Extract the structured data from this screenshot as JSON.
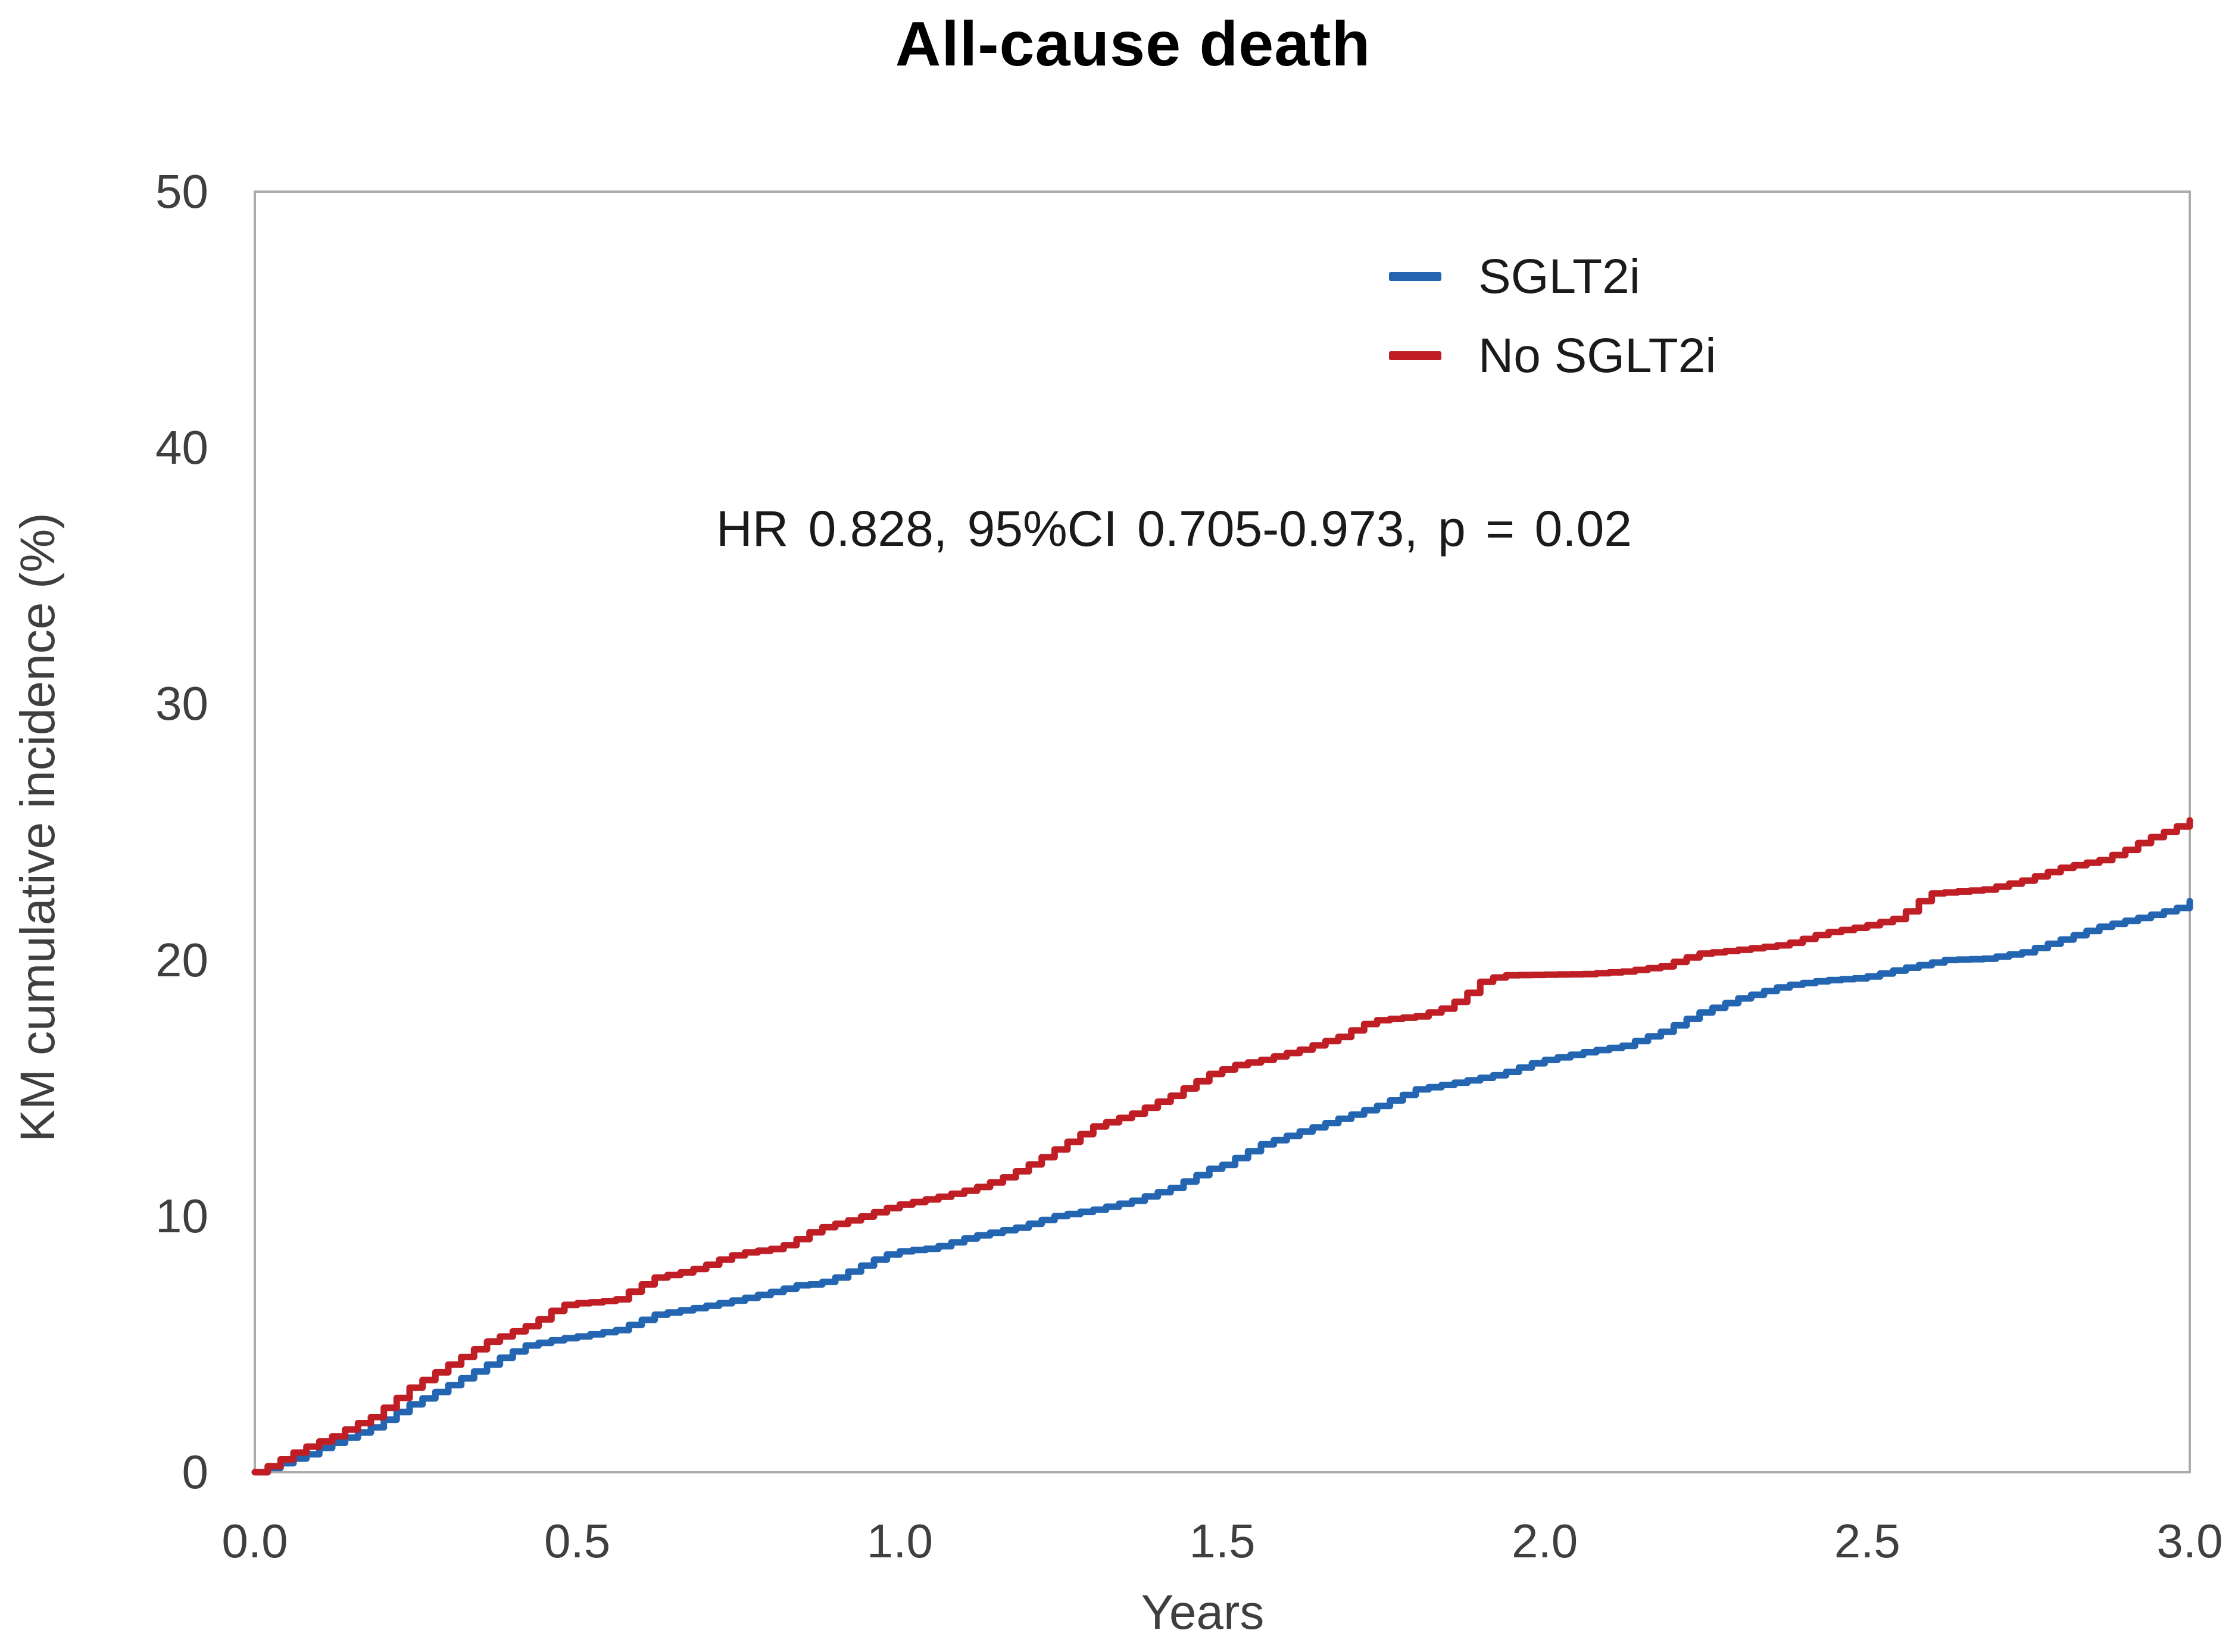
{
  "chart_data": {
    "type": "line",
    "subtype": "kaplan-meier-step",
    "title": "All-cause death",
    "xlabel": "Years",
    "ylabel": "KM cumulative incidence (%)",
    "annotation": "HR 0.828, 95%CI 0.705-0.973, p = 0.02",
    "xlim": [
      0.0,
      3.0
    ],
    "ylim": [
      0,
      50
    ],
    "x_ticks": [
      "0.0",
      "0.5",
      "1.0",
      "1.5",
      "2.0",
      "2.5",
      "3.0"
    ],
    "y_ticks": [
      "0",
      "10",
      "20",
      "30",
      "40",
      "50"
    ],
    "grid": false,
    "legend_position": "inside-upper-right",
    "axis_line_color": "#ababab",
    "series": [
      {
        "name": "SGLT2i",
        "color": "#2365B0",
        "points": [
          [
            0.0,
            0.0
          ],
          [
            0.03,
            0.25
          ],
          [
            0.05,
            0.45
          ],
          [
            0.08,
            0.7
          ],
          [
            0.1,
            0.95
          ],
          [
            0.15,
            1.45
          ],
          [
            0.18,
            1.75
          ],
          [
            0.21,
            2.2
          ],
          [
            0.24,
            2.65
          ],
          [
            0.27,
            3.0
          ],
          [
            0.3,
            3.4
          ],
          [
            0.33,
            3.8
          ],
          [
            0.36,
            4.2
          ],
          [
            0.39,
            4.6
          ],
          [
            0.42,
            4.95
          ],
          [
            0.45,
            5.1
          ],
          [
            0.47,
            5.2
          ],
          [
            0.5,
            5.3
          ],
          [
            0.56,
            5.55
          ],
          [
            0.62,
            6.15
          ],
          [
            0.69,
            6.45
          ],
          [
            0.75,
            6.75
          ],
          [
            0.81,
            7.1
          ],
          [
            0.84,
            7.3
          ],
          [
            0.87,
            7.35
          ],
          [
            0.9,
            7.6
          ],
          [
            0.93,
            7.95
          ],
          [
            0.96,
            8.3
          ],
          [
            0.99,
            8.6
          ],
          [
            1.05,
            8.75
          ],
          [
            1.11,
            9.2
          ],
          [
            1.18,
            9.55
          ],
          [
            1.24,
            10.0
          ],
          [
            1.3,
            10.25
          ],
          [
            1.36,
            10.6
          ],
          [
            1.42,
            11.1
          ],
          [
            1.48,
            11.85
          ],
          [
            1.5,
            12.0
          ],
          [
            1.56,
            12.8
          ],
          [
            1.62,
            13.3
          ],
          [
            1.68,
            13.8
          ],
          [
            1.74,
            14.3
          ],
          [
            1.8,
            14.95
          ],
          [
            1.87,
            15.25
          ],
          [
            1.93,
            15.55
          ],
          [
            1.99,
            16.05
          ],
          [
            2.06,
            16.4
          ],
          [
            2.12,
            16.65
          ],
          [
            2.18,
            17.2
          ],
          [
            2.24,
            17.95
          ],
          [
            2.3,
            18.5
          ],
          [
            2.37,
            19.0
          ],
          [
            2.43,
            19.2
          ],
          [
            2.49,
            19.3
          ],
          [
            2.56,
            19.7
          ],
          [
            2.62,
            20.0
          ],
          [
            2.68,
            20.05
          ],
          [
            2.74,
            20.3
          ],
          [
            2.8,
            20.8
          ],
          [
            2.86,
            21.3
          ],
          [
            2.93,
            21.7
          ],
          [
            2.99,
            22.1
          ],
          [
            3.0,
            22.3
          ]
        ]
      },
      {
        "name": "No SGLT2i",
        "color": "#BE1E24",
        "points": [
          [
            0.0,
            0.0
          ],
          [
            0.03,
            0.35
          ],
          [
            0.05,
            0.65
          ],
          [
            0.08,
            1.0
          ],
          [
            0.12,
            1.4
          ],
          [
            0.15,
            1.8
          ],
          [
            0.18,
            2.15
          ],
          [
            0.21,
            2.7
          ],
          [
            0.24,
            3.3
          ],
          [
            0.27,
            3.75
          ],
          [
            0.3,
            4.2
          ],
          [
            0.33,
            4.65
          ],
          [
            0.36,
            5.1
          ],
          [
            0.39,
            5.4
          ],
          [
            0.42,
            5.7
          ],
          [
            0.45,
            6.1
          ],
          [
            0.47,
            6.5
          ],
          [
            0.5,
            6.6
          ],
          [
            0.53,
            6.65
          ],
          [
            0.56,
            6.75
          ],
          [
            0.59,
            7.2
          ],
          [
            0.62,
            7.6
          ],
          [
            0.66,
            7.8
          ],
          [
            0.69,
            8.0
          ],
          [
            0.72,
            8.3
          ],
          [
            0.75,
            8.55
          ],
          [
            0.78,
            8.65
          ],
          [
            0.81,
            8.75
          ],
          [
            0.84,
            9.1
          ],
          [
            0.87,
            9.5
          ],
          [
            0.9,
            9.7
          ],
          [
            0.93,
            9.9
          ],
          [
            0.96,
            10.15
          ],
          [
            0.99,
            10.4
          ],
          [
            1.05,
            10.7
          ],
          [
            1.11,
            11.05
          ],
          [
            1.15,
            11.4
          ],
          [
            1.18,
            11.75
          ],
          [
            1.21,
            12.15
          ],
          [
            1.24,
            12.6
          ],
          [
            1.27,
            13.05
          ],
          [
            1.3,
            13.5
          ],
          [
            1.36,
            14.0
          ],
          [
            1.42,
            14.7
          ],
          [
            1.48,
            15.55
          ],
          [
            1.52,
            15.9
          ],
          [
            1.56,
            16.1
          ],
          [
            1.62,
            16.5
          ],
          [
            1.68,
            17.0
          ],
          [
            1.72,
            17.5
          ],
          [
            1.74,
            17.65
          ],
          [
            1.8,
            17.8
          ],
          [
            1.84,
            18.1
          ],
          [
            1.87,
            18.5
          ],
          [
            1.9,
            19.15
          ],
          [
            1.93,
            19.4
          ],
          [
            2.06,
            19.45
          ],
          [
            2.12,
            19.55
          ],
          [
            2.18,
            19.75
          ],
          [
            2.22,
            20.1
          ],
          [
            2.24,
            20.25
          ],
          [
            2.3,
            20.4
          ],
          [
            2.37,
            20.6
          ],
          [
            2.43,
            21.05
          ],
          [
            2.49,
            21.3
          ],
          [
            2.54,
            21.6
          ],
          [
            2.56,
            21.9
          ],
          [
            2.58,
            22.3
          ],
          [
            2.6,
            22.6
          ],
          [
            2.68,
            22.75
          ],
          [
            2.74,
            23.1
          ],
          [
            2.8,
            23.6
          ],
          [
            2.86,
            23.9
          ],
          [
            2.9,
            24.3
          ],
          [
            2.93,
            24.7
          ],
          [
            2.97,
            25.1
          ],
          [
            3.0,
            25.45
          ]
        ]
      }
    ]
  }
}
